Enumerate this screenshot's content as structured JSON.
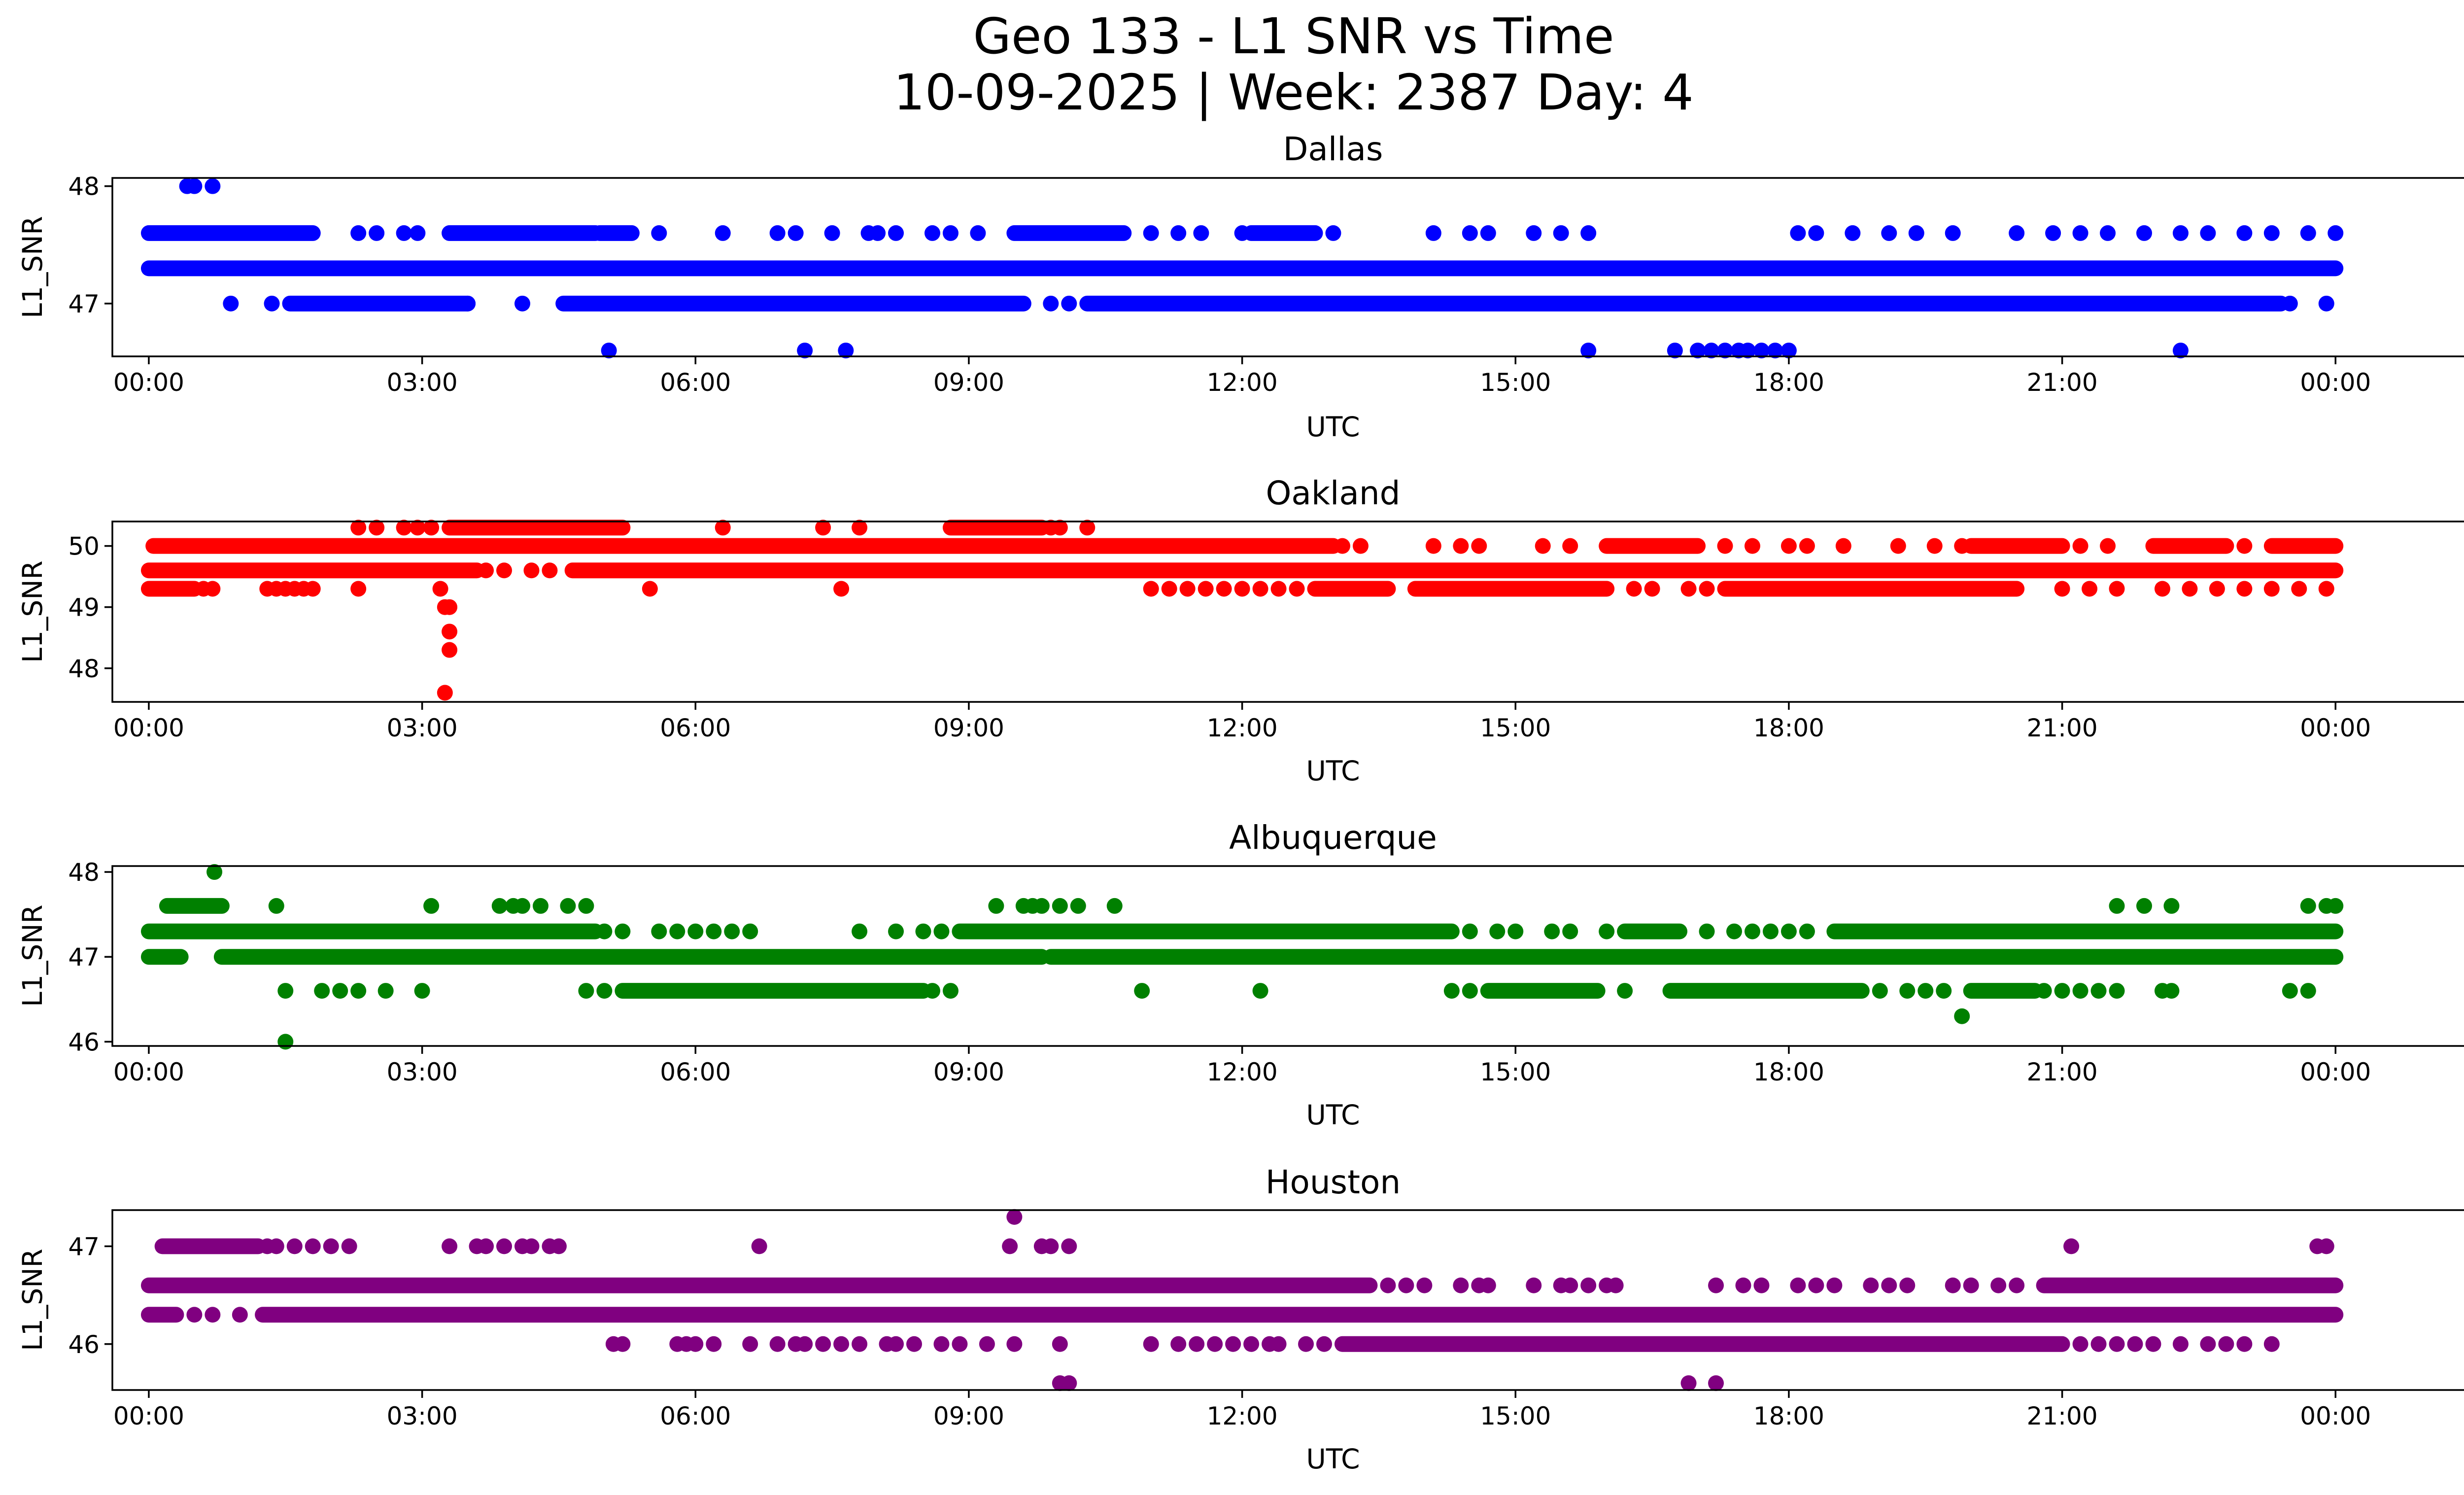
{
  "figure": {
    "title_line1": "Geo 133 - L1 SNR vs Time",
    "title_line2": "10-09-2025 | Week: 2387 Day: 4"
  },
  "chart_data": [
    {
      "type": "scatter",
      "title": "Dallas",
      "xlabel": "UTC",
      "ylabel": "L1_SNR",
      "color": "#0000ff",
      "xlim": [
        -0.4,
        26.4
      ],
      "ylim": [
        46.55,
        48.07
      ],
      "xticks": [
        0,
        3,
        6,
        9,
        12,
        15,
        18,
        21,
        24
      ],
      "xtick_labels": [
        "00:00",
        "03:00",
        "06:00",
        "09:00",
        "12:00",
        "15:00",
        "18:00",
        "21:00",
        "00:00"
      ],
      "yticks": [
        47,
        48
      ],
      "ytick_labels": [
        "47",
        "48"
      ],
      "bands": [
        {
          "y": 47.3,
          "ranges": [
            [
              0,
              24
            ]
          ]
        },
        {
          "y": 47.6,
          "ranges": [
            [
              0,
              1.8
            ],
            [
              3.3,
              4.9
            ],
            [
              4.95,
              5.3
            ],
            [
              9.5,
              10.7
            ],
            [
              12.1,
              12.8
            ]
          ]
        },
        {
          "y": 47.0,
          "ranges": [
            [
              1.55,
              3.5
            ],
            [
              4.55,
              9.6
            ],
            [
              10.3,
              23.4
            ]
          ]
        }
      ],
      "points": [
        {
          "y": 48.0,
          "x": [
            0.42,
            0.5,
            0.7
          ]
        },
        {
          "y": 47.6,
          "x": [
            2.3,
            2.5,
            2.8,
            2.95,
            5.6,
            6.3,
            6.9,
            7.1,
            7.5,
            7.9,
            8.0,
            8.2,
            8.6,
            8.8,
            9.1,
            11.0,
            11.3,
            11.55,
            12.0,
            13.0,
            14.1,
            14.5,
            14.7,
            15.2,
            15.5,
            15.8,
            18.1,
            18.3,
            18.7,
            19.1,
            19.4,
            19.8,
            20.5,
            20.9,
            21.2,
            21.5,
            21.9,
            22.3,
            22.6,
            23.0,
            23.3,
            23.7,
            24.0
          ]
        },
        {
          "y": 47.0,
          "x": [
            0.9,
            1.35,
            3.5,
            4.1,
            9.9,
            10.1,
            23.5,
            23.9
          ]
        },
        {
          "y": 46.6,
          "x": [
            5.05,
            7.2,
            7.65,
            15.8,
            16.75,
            17.0,
            17.15,
            17.3,
            17.45,
            17.55,
            17.7,
            17.85,
            18.0,
            22.3
          ]
        }
      ]
    },
    {
      "type": "scatter",
      "title": "Oakland",
      "xlabel": "UTC",
      "ylabel": "L1_SNR",
      "color": "#ff0000",
      "xlim": [
        -0.4,
        26.4
      ],
      "ylim": [
        47.45,
        50.4
      ],
      "xticks": [
        0,
        3,
        6,
        9,
        12,
        15,
        18,
        21,
        24
      ],
      "xtick_labels": [
        "00:00",
        "03:00",
        "06:00",
        "09:00",
        "12:00",
        "15:00",
        "18:00",
        "21:00",
        "00:00"
      ],
      "yticks": [
        48,
        49,
        50
      ],
      "ytick_labels": [
        "48",
        "49",
        "50"
      ],
      "bands": [
        {
          "y": 49.6,
          "ranges": [
            [
              0,
              3.6
            ],
            [
              4.65,
              24
            ]
          ]
        },
        {
          "y": 50.0,
          "ranges": [
            [
              0.05,
              13.0
            ],
            [
              16.0,
              17.0
            ],
            [
              20.0,
              21.0
            ],
            [
              22.0,
              22.8
            ],
            [
              23.3,
              24
            ]
          ]
        },
        {
          "y": 49.3,
          "ranges": [
            [
              0,
              0.5
            ],
            [
              12.8,
              13.6
            ],
            [
              13.9,
              16.0
            ],
            [
              17.3,
              20.5
            ]
          ]
        },
        {
          "y": 50.3,
          "ranges": [
            [
              3.3,
              5.2
            ],
            [
              8.8,
              9.8
            ]
          ]
        }
      ],
      "points": [
        {
          "y": 50.3,
          "x": [
            2.3,
            2.5,
            2.8,
            2.95,
            3.1,
            6.3,
            7.4,
            7.8,
            9.9,
            10.0,
            10.3
          ]
        },
        {
          "y": 50.0,
          "x": [
            13.1,
            13.3,
            14.1,
            14.4,
            14.6,
            15.3,
            15.6,
            17.3,
            17.6,
            18.0,
            18.2,
            18.6,
            19.2,
            19.6,
            19.9,
            21.2,
            21.5,
            23.0
          ]
        },
        {
          "y": 49.6,
          "x": [
            3.7,
            3.9,
            4.2,
            4.4
          ]
        },
        {
          "y": 49.3,
          "x": [
            0.6,
            0.7,
            1.3,
            1.4,
            1.5,
            1.6,
            1.7,
            1.8,
            2.3,
            3.2,
            5.5,
            7.6,
            11.0,
            11.2,
            11.4,
            11.6,
            11.8,
            12.0,
            12.2,
            12.4,
            12.6,
            16.3,
            16.5,
            16.9,
            17.1,
            21.0,
            21.3,
            21.6,
            22.1,
            22.4,
            22.7,
            23.0,
            23.3,
            23.6,
            23.9
          ]
        },
        {
          "y": 49.0,
          "x": [
            3.25,
            3.3
          ]
        },
        {
          "y": 48.6,
          "x": [
            3.3
          ]
        },
        {
          "y": 48.3,
          "x": [
            3.3
          ]
        },
        {
          "y": 47.6,
          "x": [
            3.25
          ]
        }
      ]
    },
    {
      "type": "scatter",
      "title": "Albuquerque",
      "xlabel": "UTC",
      "ylabel": "L1_SNR",
      "color": "#008000",
      "xlim": [
        -0.4,
        26.4
      ],
      "ylim": [
        45.95,
        48.07
      ],
      "xticks": [
        0,
        3,
        6,
        9,
        12,
        15,
        18,
        21,
        24
      ],
      "xtick_labels": [
        "00:00",
        "03:00",
        "06:00",
        "09:00",
        "12:00",
        "15:00",
        "18:00",
        "21:00",
        "00:00"
      ],
      "yticks": [
        46,
        47,
        48
      ],
      "ytick_labels": [
        "46",
        "47",
        "48"
      ],
      "bands": [
        {
          "y": 47.0,
          "ranges": [
            [
              0,
              0.35
            ],
            [
              0.8,
              9.8
            ],
            [
              9.9,
              24
            ]
          ]
        },
        {
          "y": 47.3,
          "ranges": [
            [
              0,
              4.9
            ],
            [
              8.9,
              14.3
            ],
            [
              16.2,
              16.8
            ],
            [
              18.5,
              24
            ]
          ]
        },
        {
          "y": 46.6,
          "ranges": [
            [
              5.2,
              8.5
            ],
            [
              14.7,
              15.9
            ],
            [
              16.7,
              18.8
            ],
            [
              20.0,
              20.7
            ]
          ]
        },
        {
          "y": 47.6,
          "ranges": [
            [
              0.2,
              0.8
            ]
          ]
        }
      ],
      "points": [
        {
          "y": 48.0,
          "x": [
            0.72
          ]
        },
        {
          "y": 47.6,
          "x": [
            1.4,
            3.1,
            3.85,
            4.0,
            4.1,
            4.3,
            4.6,
            4.8,
            9.3,
            9.6,
            9.7,
            9.8,
            10.0,
            10.2,
            10.6,
            21.6,
            21.9,
            22.2,
            23.7,
            23.9,
            24.0
          ]
        },
        {
          "y": 47.3,
          "x": [
            5.0,
            5.2,
            5.6,
            5.8,
            6.0,
            6.2,
            6.4,
            6.6,
            7.8,
            8.2,
            8.5,
            8.7,
            14.5,
            14.8,
            15.0,
            15.4,
            15.6,
            16.0,
            17.1,
            17.4,
            17.6,
            17.8,
            18.0,
            18.2
          ]
        },
        {
          "y": 46.6,
          "x": [
            1.5,
            1.9,
            2.1,
            2.3,
            2.6,
            3.0,
            4.8,
            5.0,
            8.6,
            8.8,
            10.9,
            12.2,
            14.3,
            14.5,
            16.2,
            19.0,
            19.3,
            19.5,
            19.7,
            20.8,
            21.0,
            21.2,
            21.4,
            21.6,
            22.1,
            22.2,
            23.5,
            23.7
          ]
        },
        {
          "y": 46.3,
          "x": [
            19.9
          ]
        },
        {
          "y": 46.0,
          "x": [
            1.5
          ]
        }
      ]
    },
    {
      "type": "scatter",
      "title": "Houston",
      "xlabel": "UTC",
      "ylabel": "L1_SNR",
      "color": "#800080",
      "xlim": [
        -0.4,
        26.4
      ],
      "ylim": [
        45.53,
        47.37
      ],
      "xticks": [
        0,
        3,
        6,
        9,
        12,
        15,
        18,
        21,
        24
      ],
      "xtick_labels": [
        "00:00",
        "03:00",
        "06:00",
        "09:00",
        "12:00",
        "15:00",
        "18:00",
        "21:00",
        "00:00"
      ],
      "yticks": [
        46,
        47
      ],
      "ytick_labels": [
        "46",
        "47"
      ],
      "bands": [
        {
          "y": 46.6,
          "ranges": [
            [
              0,
              13.4
            ],
            [
              20.8,
              24
            ]
          ]
        },
        {
          "y": 46.3,
          "ranges": [
            [
              0,
              0.3
            ],
            [
              1.25,
              24
            ]
          ]
        },
        {
          "y": 46.0,
          "ranges": [
            [
              13.1,
              21.0
            ]
          ]
        },
        {
          "y": 47.0,
          "ranges": [
            [
              0.15,
              1.2
            ]
          ]
        }
      ],
      "points": [
        {
          "y": 47.3,
          "x": [
            9.5
          ]
        },
        {
          "y": 47.0,
          "x": [
            1.3,
            1.4,
            1.6,
            1.8,
            2.0,
            2.2,
            3.3,
            3.6,
            3.7,
            3.9,
            4.1,
            4.2,
            4.4,
            4.5,
            6.7,
            9.45,
            9.8,
            9.9,
            10.1,
            21.1,
            23.8,
            23.9
          ]
        },
        {
          "y": 46.6,
          "x": [
            13.6,
            13.8,
            14.0,
            14.4,
            14.6,
            14.7,
            15.2,
            15.5,
            15.6,
            15.8,
            16.0,
            16.1,
            17.2,
            17.5,
            17.7,
            18.1,
            18.3,
            18.5,
            18.9,
            19.1,
            19.3,
            19.8,
            20.0,
            20.3,
            20.5
          ]
        },
        {
          "y": 46.3,
          "x": [
            0.5,
            0.7,
            1.0
          ]
        },
        {
          "y": 46.0,
          "x": [
            5.1,
            5.2,
            5.8,
            5.9,
            6.0,
            6.2,
            6.6,
            6.9,
            7.1,
            7.2,
            7.4,
            7.6,
            7.8,
            8.1,
            8.2,
            8.4,
            8.7,
            8.9,
            9.2,
            9.5,
            10.0,
            11.0,
            11.3,
            11.5,
            11.7,
            11.9,
            12.1,
            12.3,
            12.4,
            12.7,
            12.9,
            21.2,
            21.4,
            21.6,
            21.8,
            22.0,
            22.3,
            22.6,
            22.8,
            23.0,
            23.3
          ]
        },
        {
          "y": 45.6,
          "x": [
            10.0,
            10.1,
            16.9,
            17.2
          ]
        }
      ]
    }
  ]
}
